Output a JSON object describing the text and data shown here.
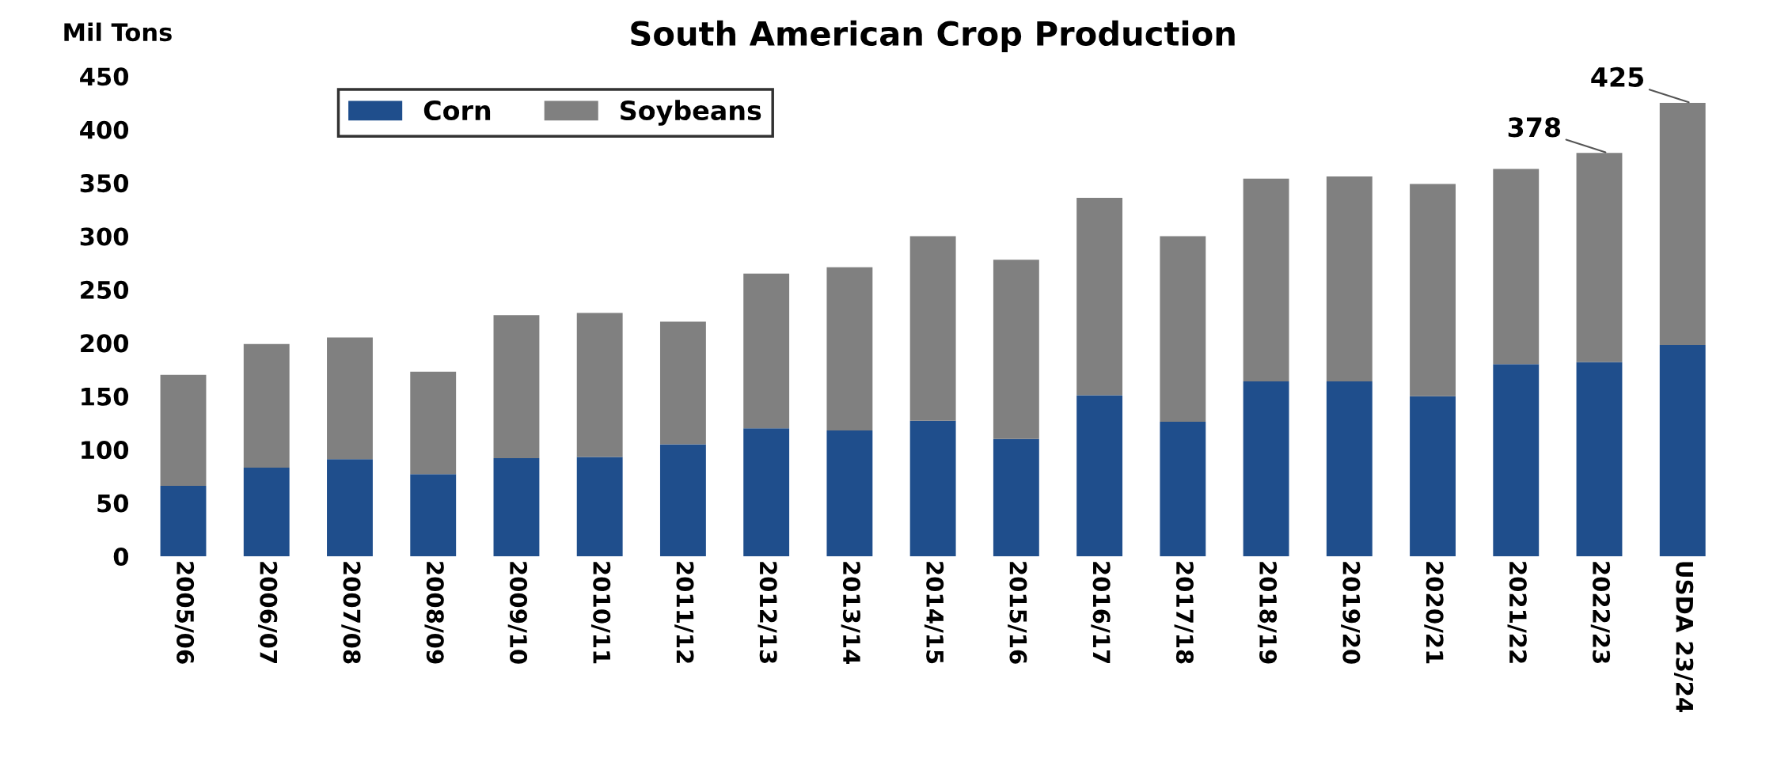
{
  "chart_data": {
    "type": "bar",
    "stacked": true,
    "title": "South American Crop Production",
    "ylabel": "Mil Tons",
    "categories": [
      "2005/06",
      "2006/07",
      "2007/08",
      "2008/09",
      "2009/10",
      "2010/11",
      "2011/12",
      "2012/13",
      "2013/14",
      "2014/15",
      "2015/16",
      "2016/17",
      "2017/18",
      "2018/19",
      "2019/20",
      "2020/21",
      "2021/22",
      "2022/23",
      "USDA 23/24"
    ],
    "series": [
      {
        "name": "Corn",
        "color": "#1f4e8c",
        "values": [
          66,
          83,
          91,
          77,
          92,
          93,
          105,
          120,
          118,
          127,
          110,
          151,
          126,
          164,
          164,
          150,
          180,
          182,
          198
        ]
      },
      {
        "name": "Soybeans",
        "color": "#808080",
        "values": [
          104,
          116,
          114,
          96,
          134,
          135,
          115,
          145,
          153,
          173,
          168,
          185,
          174,
          190,
          192,
          199,
          183,
          196,
          227
        ]
      }
    ],
    "ylim": [
      0,
      450
    ],
    "yticks": [
      0,
      50,
      100,
      150,
      200,
      250,
      300,
      350,
      400,
      450
    ],
    "grid": false,
    "legend": "top left",
    "annotations": [
      {
        "text": "378",
        "x": "2022/23",
        "y": 378
      },
      {
        "text": "425",
        "x": "USDA 23/24",
        "y": 425
      }
    ]
  }
}
